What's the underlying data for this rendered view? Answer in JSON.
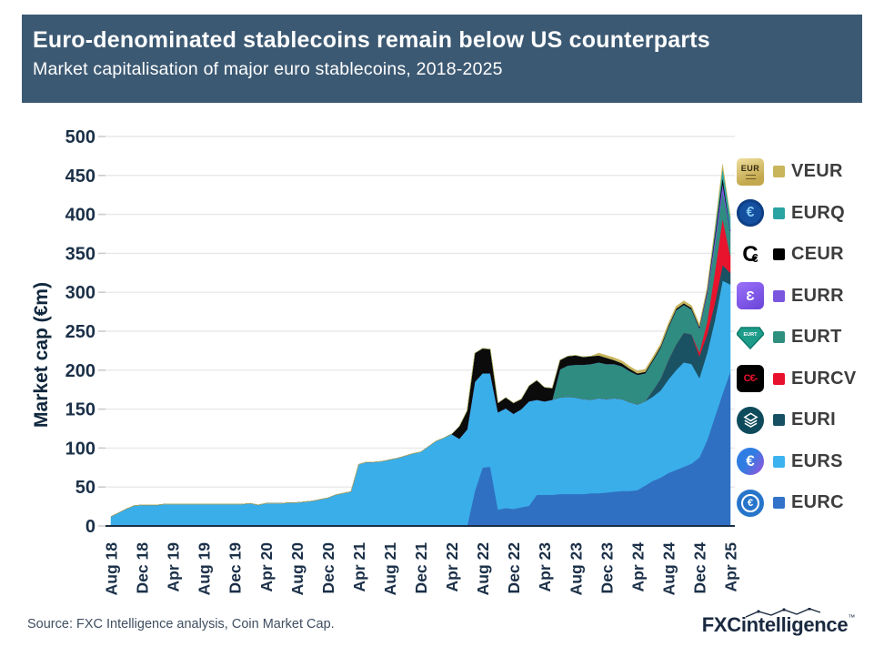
{
  "header": {
    "title": "Euro-denominated stablecoins remain below US counterparts",
    "subtitle": "Market capitalisation of major euro stablecoins, 2018-2025"
  },
  "chart": {
    "y_axis_label": "Market cap (€m)",
    "y_ticks": [
      0,
      50,
      100,
      150,
      200,
      250,
      300,
      350,
      400,
      450,
      500
    ]
  },
  "chart_data": {
    "type": "area",
    "stacked": true,
    "title": "Market capitalisation of major euro stablecoins, 2018-2025",
    "ylabel": "Market cap (€m)",
    "ylim": [
      0,
      500
    ],
    "grid": true,
    "legend_position": "right",
    "x_unit": "month",
    "x_start": "Aug 2018",
    "x_end": "Apr 2025",
    "points": 81,
    "x_tick_every": 4,
    "x_tick_labels": [
      "Aug 18",
      "Dec 18",
      "Apr 19",
      "Aug 19",
      "Dec 19",
      "Apr 20",
      "Aug 20",
      "Dec 20",
      "Apr 21",
      "Aug 21",
      "Dec 21",
      "Apr 22",
      "Aug 22",
      "Dec 22",
      "Apr 23",
      "Aug 23",
      "Dec 23",
      "Apr 24",
      "Aug 24",
      "Dec 24",
      "Apr 25"
    ],
    "series": [
      {
        "name": "EURC",
        "color": "#2f70c2",
        "values": [
          0,
          0,
          0,
          0,
          0,
          0,
          0,
          0,
          0,
          0,
          0,
          0,
          0,
          0,
          0,
          0,
          0,
          0,
          0,
          0,
          0,
          0,
          0,
          0,
          0,
          0,
          0,
          0,
          0,
          0,
          0,
          0,
          0,
          0,
          0,
          0,
          0,
          0,
          0,
          0,
          0,
          0,
          0,
          0,
          0,
          0,
          0,
          45,
          75,
          76,
          21,
          23,
          22,
          24,
          26,
          40,
          40,
          40,
          41,
          41,
          41,
          41,
          42,
          42,
          43,
          44,
          45,
          45,
          46,
          52,
          58,
          62,
          68,
          72,
          76,
          80,
          88,
          110,
          140,
          170,
          198
        ]
      },
      {
        "name": "EURS",
        "color": "#3aaee9",
        "values": [
          12,
          17,
          22,
          26,
          27,
          27,
          27,
          28,
          28,
          28,
          28,
          28,
          28,
          28,
          28,
          28,
          28,
          28,
          29,
          27,
          29,
          29,
          29,
          30,
          30,
          31,
          32,
          34,
          36,
          40,
          42,
          44,
          79,
          82,
          82,
          83,
          85,
          87,
          90,
          93,
          95,
          102,
          109,
          113,
          118,
          112,
          124,
          140,
          121,
          120,
          125,
          128,
          122,
          126,
          134,
          122,
          120,
          122,
          124,
          125,
          124,
          122,
          120,
          122,
          120,
          120,
          118,
          114,
          110,
          108,
          108,
          112,
          120,
          128,
          134,
          128,
          102,
          112,
          124,
          145,
          112
        ]
      },
      {
        "name": "EURI",
        "color": "#1a5264",
        "values": [
          0,
          0,
          0,
          0,
          0,
          0,
          0,
          0,
          0,
          0,
          0,
          0,
          0,
          0,
          0,
          0,
          0,
          0,
          0,
          0,
          0,
          0,
          0,
          0,
          0,
          0,
          0,
          0,
          0,
          0,
          0,
          0,
          0,
          0,
          0,
          0,
          0,
          0,
          0,
          0,
          0,
          0,
          0,
          0,
          0,
          0,
          0,
          0,
          0,
          0,
          0,
          0,
          0,
          0,
          0,
          0,
          0,
          0,
          0,
          0,
          0,
          0,
          0,
          0,
          0,
          0,
          0,
          0,
          0,
          0,
          8,
          15,
          25,
          33,
          38,
          38,
          28,
          24,
          22,
          20,
          15
        ]
      },
      {
        "name": "EURCV",
        "color": "#e8132d",
        "values": [
          0,
          0,
          0,
          0,
          0,
          0,
          0,
          0,
          0,
          0,
          0,
          0,
          0,
          0,
          0,
          0,
          0,
          0,
          0,
          0,
          0,
          0,
          0,
          0,
          0,
          0,
          0,
          0,
          0,
          0,
          0,
          0,
          0,
          0,
          0,
          0,
          0,
          0,
          0,
          0,
          0,
          0,
          0,
          0,
          0,
          0,
          0,
          0,
          0,
          0,
          0,
          0,
          0,
          0,
          0,
          0,
          0,
          0,
          0,
          0,
          0,
          0,
          0,
          0,
          0,
          0,
          0,
          0,
          0,
          0,
          0,
          0,
          0,
          0,
          0,
          0,
          5,
          16,
          40,
          60,
          22
        ]
      },
      {
        "name": "EURT",
        "color": "#2e8c80",
        "values": [
          0,
          0,
          0,
          0,
          0,
          0,
          0,
          0,
          0,
          0,
          0,
          0,
          0,
          0,
          0,
          0,
          0,
          0,
          0,
          0,
          0,
          0,
          0,
          0,
          0,
          0,
          0,
          0,
          0,
          0,
          0,
          0,
          0,
          0,
          0,
          0,
          0,
          0,
          0,
          0,
          0,
          0,
          0,
          0,
          0,
          0,
          0,
          0,
          0,
          0,
          0,
          0,
          0,
          0,
          0,
          0,
          0,
          0,
          36,
          40,
          42,
          44,
          46,
          46,
          45,
          44,
          42,
          40,
          38,
          36,
          38,
          40,
          42,
          44,
          36,
          32,
          30,
          34,
          34,
          34,
          30
        ]
      },
      {
        "name": "EURR",
        "color": "#7b57e0",
        "values": [
          0,
          0,
          0,
          0,
          0,
          0,
          0,
          0,
          0,
          0,
          0,
          0,
          0,
          0,
          0,
          0,
          0,
          0,
          0,
          0,
          0,
          0,
          0,
          0,
          0,
          0,
          0,
          0,
          0,
          0,
          0,
          0,
          0,
          0,
          0,
          0,
          0,
          0,
          0,
          0,
          0,
          0,
          0,
          0,
          0,
          0,
          0,
          0,
          0,
          0,
          0,
          0,
          0,
          0,
          0,
          0,
          0,
          0,
          0,
          0,
          0,
          0,
          0,
          0,
          0,
          0,
          0,
          0,
          0,
          0,
          0,
          0,
          0,
          0,
          0,
          0,
          1,
          4,
          8,
          11,
          2
        ]
      },
      {
        "name": "CEUR",
        "color": "#0b0b0b",
        "values": [
          0,
          0,
          0,
          0,
          0,
          0,
          0,
          0,
          0,
          0,
          0,
          0,
          0,
          0,
          0,
          0,
          0,
          0,
          0,
          0,
          0,
          0,
          0,
          0,
          0,
          0,
          0,
          0,
          0,
          0,
          0,
          0,
          0,
          0,
          0,
          0,
          0,
          0,
          0,
          0,
          0,
          0,
          0,
          0,
          0,
          16,
          24,
          37,
          32,
          31,
          12,
          14,
          14,
          13,
          20,
          25,
          18,
          15,
          12,
          12,
          12,
          10,
          10,
          9,
          8,
          5,
          4,
          3,
          2,
          2,
          2,
          2,
          2,
          2,
          2,
          2,
          2,
          3,
          5,
          8,
          1
        ]
      },
      {
        "name": "EURQ",
        "color": "#2aa3a3",
        "values": [
          0,
          0,
          0,
          0,
          0,
          0,
          0,
          0,
          0,
          0,
          0,
          0,
          0,
          0,
          0,
          0,
          0,
          0,
          0,
          0,
          0,
          0,
          0,
          0,
          0,
          0,
          0,
          0,
          0,
          0,
          0,
          0,
          0,
          0,
          0,
          0,
          0,
          0,
          0,
          0,
          0,
          0,
          0,
          0,
          0,
          0,
          0,
          0,
          0,
          0,
          0,
          0,
          0,
          0,
          0,
          0,
          0,
          0,
          0,
          0,
          0,
          0,
          0,
          0,
          0,
          0,
          0,
          0,
          0,
          0,
          0,
          0,
          0,
          0,
          0,
          0,
          0,
          0,
          6,
          12,
          17
        ]
      },
      {
        "name": "VEUR",
        "color": "#c9b55c",
        "values": [
          0,
          0,
          0,
          0,
          0,
          0,
          0,
          0,
          0,
          0,
          0,
          0,
          0,
          0,
          0,
          0,
          0,
          0,
          0,
          0,
          0,
          0,
          0,
          0,
          0,
          0,
          0,
          0,
          0,
          0,
          0,
          0,
          0,
          0,
          0,
          0,
          0,
          0,
          0,
          0,
          0,
          0,
          0,
          0,
          0,
          0,
          0,
          0,
          0,
          0,
          0,
          0,
          0,
          0,
          0,
          0,
          0,
          0,
          0,
          0,
          0,
          0,
          0,
          3,
          3,
          3,
          3,
          3,
          3,
          3,
          3,
          3,
          3,
          3,
          3,
          3,
          3,
          3,
          3,
          4,
          1
        ]
      }
    ]
  },
  "legend": {
    "items": [
      {
        "label": "VEUR",
        "color": "#c9b55c",
        "icon": "veur",
        "icon_text": "EUR"
      },
      {
        "label": "EURQ",
        "color": "#2aa3a3",
        "icon": "eurq",
        "icon_text": "€"
      },
      {
        "label": "CEUR",
        "color": "#000000",
        "icon": "ceur",
        "icon_text": "C€"
      },
      {
        "label": "EURR",
        "color": "#7b57e0",
        "icon": "eurr",
        "icon_text": "Ɛ"
      },
      {
        "label": "EURT",
        "color": "#2e8f7f",
        "icon": "eurt",
        "icon_text": "EURT"
      },
      {
        "label": "EURCV",
        "color": "#e8112d",
        "icon": "eurcv",
        "icon_text": "C€-"
      },
      {
        "label": "EURI",
        "color": "#174f63",
        "icon": "euri",
        "icon_text": ""
      },
      {
        "label": "EURS",
        "color": "#3cb3ef",
        "icon": "eurs",
        "icon_text": "€"
      },
      {
        "label": "EURC",
        "color": "#3273c9",
        "icon": "eurc",
        "icon_text": "€"
      }
    ]
  },
  "footer": {
    "source": "Source: FXC Intelligence analysis, Coin Market Cap.",
    "brand_bold": "FXC",
    "brand_rest": "intelligence",
    "brand_tm": "™"
  }
}
